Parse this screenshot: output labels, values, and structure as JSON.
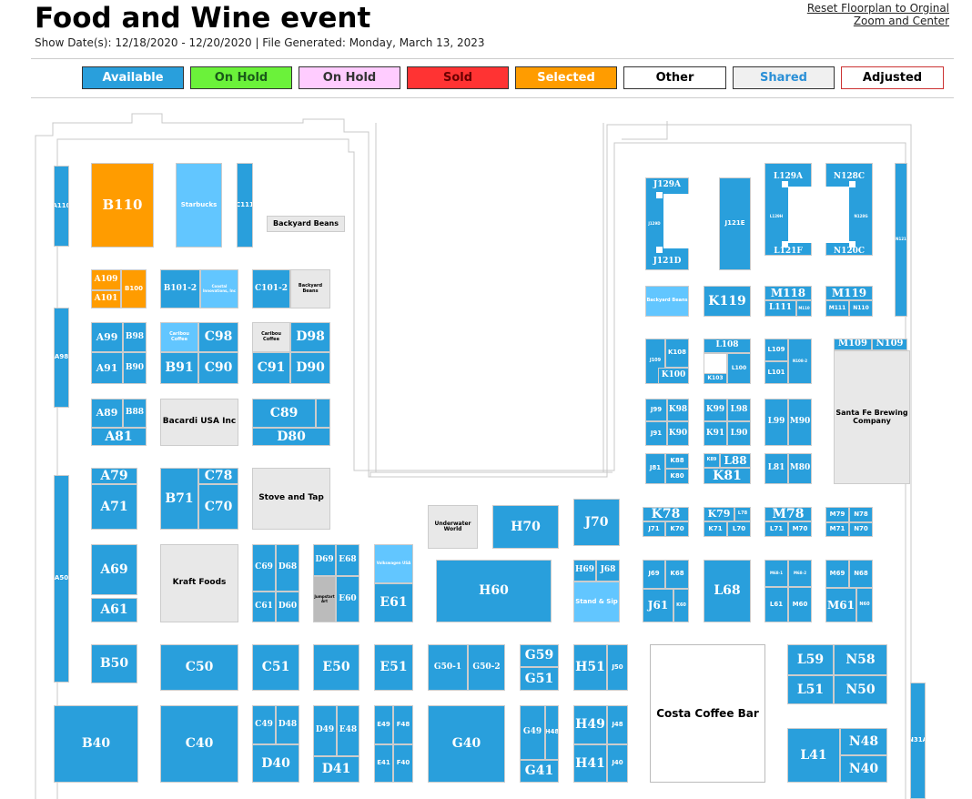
{
  "header": {
    "title": "Food and Wine event",
    "subtitle": "Show Date(s): 12/18/2020 - 12/20/2020 | File Generated: Monday, March 13, 2023",
    "reset_line1": "Reset Floorplan to Orginal",
    "reset_line2": "Zoom and Center"
  },
  "legend": [
    {
      "label": "Available",
      "bg": "#299fdc",
      "color": "#ffffff"
    },
    {
      "label": "On Hold",
      "bg": "#6bf23a",
      "color": "#1a5a1a"
    },
    {
      "label": "On Hold",
      "bg": "#ffccff",
      "color": "#333333"
    },
    {
      "label": "Sold",
      "bg": "#ff3333",
      "color": "#6a0000"
    },
    {
      "label": "Selected",
      "bg": "#ff9c00",
      "color": "#ffffff"
    },
    {
      "label": "Other",
      "bg": "#ffffff",
      "color": "#000000"
    },
    {
      "label": "Shared",
      "bg": "#f0f0f0",
      "color": "#2a8fd6"
    },
    {
      "label": "Adjusted",
      "bg": "#ffffff",
      "color": "#000000"
    }
  ],
  "colors": {
    "available": "#299fdc",
    "selected": "#ff9c00",
    "shared": "#62c6ff",
    "other": "#e8e8e8"
  },
  "booths": {
    "A110": "A110",
    "B110": "B110",
    "starbucks": "Starbucks",
    "C111": "C111",
    "backyard_beans": "Backyard Beans",
    "A109": "A109",
    "A101": "A101",
    "B100": "B100",
    "B101_2": "B101-2",
    "coastal": "Coastal Innovations, Inc",
    "C101_2": "C101-2",
    "backyard_beans2": "Backyard Beans",
    "A98": "A98",
    "A99": "A99",
    "B98": "B98",
    "A91": "A91",
    "B90": "B90",
    "caribou": "Caribou Coffee",
    "C98": "C98",
    "B91": "B91",
    "C90": "C90",
    "caribou2": "Caribou Coffee",
    "D98": "D98",
    "C91": "C91",
    "D90": "D90",
    "A89": "A89",
    "B88": "B88",
    "A81": "A81",
    "bacardi": "Bacardi USA Inc",
    "C89": "C89",
    "D80": "D80",
    "A50": "A50",
    "A79": "A79",
    "A71": "A71",
    "B71": "B71",
    "C78": "C78",
    "C70": "C70",
    "stove": "Stove and Tap",
    "A69": "A69",
    "A61": "A61",
    "kraft": "Kraft Foods",
    "C69": "C69",
    "D68": "D68",
    "C61": "C61",
    "D60": "D60",
    "D69": "D69",
    "E68": "E68",
    "jumpstart": "Jumpstart Art",
    "E60": "E60",
    "volkswagen": "Volkswagen USA",
    "E61": "E61",
    "underwater": "Underwater World",
    "H70": "H70",
    "J70": "J70",
    "H60": "H60",
    "H69": "H69",
    "J68": "J68",
    "stand": "Stand & Sip",
    "B50": "B50",
    "C50": "C50",
    "C51": "C51",
    "E50": "E50",
    "E51": "E51",
    "G50_1": "G50-1",
    "G50_2": "G50-2",
    "G59": "G59",
    "G51": "G51",
    "H51": "H51",
    "J50": "J50",
    "costa": "Costa Coffee Bar",
    "L59": "L59",
    "N58": "N58",
    "L51": "L51",
    "N50": "N50",
    "B40": "B40",
    "C40": "C40",
    "C49": "C49",
    "D48": "D48",
    "D40": "D40",
    "D49": "D49",
    "E48": "E48",
    "D41": "D41",
    "E49": "E49",
    "F48": "F48",
    "E41": "E41",
    "F40": "F40",
    "G40": "G40",
    "G49": "G49",
    "H48": "H48",
    "G41": "G41",
    "H49": "H49",
    "J48": "J48",
    "H41": "H41",
    "J40": "J40",
    "L41": "L41",
    "N48": "N48",
    "N40": "N40",
    "N31A": "N31A",
    "J129A": "J129A",
    "J129D": "J129D",
    "J121D": "J121D",
    "J121E": "J121E",
    "L129A": "L129A",
    "L129H": "L129H",
    "L121F": "L121F",
    "N128C": "N128C",
    "N128G": "N128G",
    "N120C": "N120C",
    "N121": "N121",
    "backyard3": "Backyard Beans",
    "K119": "K119",
    "M118": "M118",
    "L111": "L111",
    "M110": "M110",
    "M119": "M119",
    "M111": "M111",
    "N110": "N110",
    "J109": "J109",
    "K108": "K108",
    "K100": "K100",
    "L108": "L108",
    "L100": "L100",
    "K103": "K103",
    "L109": "L109",
    "N108_2": "N108-2",
    "L101": "L101",
    "M109": "M109",
    "N109": "N109",
    "santafe": "Santa Fe Brewing Company",
    "J99": "J99",
    "K98": "K98",
    "J91": "J91",
    "K90": "K90",
    "K99": "K99",
    "L98": "L98",
    "K91": "K91",
    "L90": "L90",
    "L99": "L99",
    "M90": "M90",
    "J81": "J81",
    "K88": "K88",
    "K80": "K80",
    "K89": "K89",
    "L88": "L88",
    "K81": "K81",
    "L81": "L81",
    "M80": "M80",
    "K78": "K78",
    "J71": "J71",
    "K70": "K70",
    "K79": "K79",
    "L78": "L78",
    "K71": "K71",
    "L70": "L70",
    "M78": "M78",
    "L71": "L71",
    "M70": "M70",
    "M79": "M79",
    "N78": "N78",
    "M71": "M71",
    "N70": "N70",
    "J69": "J69",
    "K68": "K68",
    "J61": "J61",
    "K60": "K60",
    "L68": "L68",
    "M68_1": "M68-1",
    "M68_2": "M68-2",
    "L61": "L61",
    "M60": "M60",
    "M69": "M69",
    "N68": "N68",
    "M61": "M61",
    "N60": "N60"
  }
}
